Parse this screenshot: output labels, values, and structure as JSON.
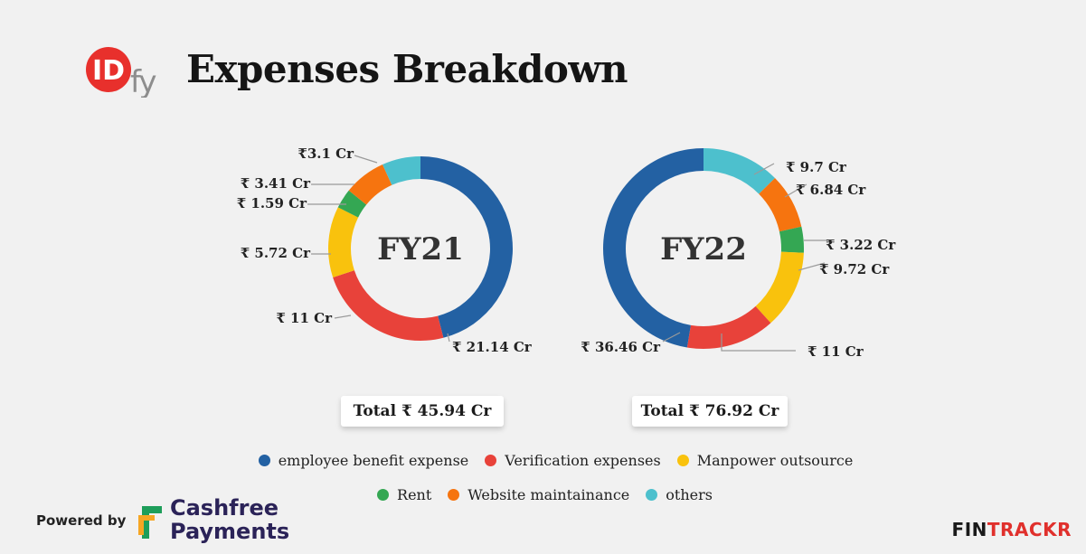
{
  "title": "Expenses Breakdown",
  "brand_logo_text": "IDfy",
  "colors": {
    "employee": "#2361a3",
    "verification": "#e8423a",
    "manpower": "#f9c20d",
    "rent": "#34a753",
    "website": "#f6740f",
    "others": "#4dc0cd"
  },
  "chart_data": [
    {
      "type": "pie",
      "donut": true,
      "center_label": "FY21",
      "total_label": "Total ₹ 45.94 Cr",
      "slices": [
        {
          "category": "employee benefit expense",
          "value": 21.14,
          "label": "₹ 21.14 Cr",
          "color": "#2361a3"
        },
        {
          "category": "Verification expenses",
          "value": 11,
          "label": "₹ 11 Cr",
          "color": "#e8423a"
        },
        {
          "category": "Manpower outsource",
          "value": 5.72,
          "label": "₹ 5.72 Cr",
          "color": "#f9c20d"
        },
        {
          "category": "Rent",
          "value": 1.59,
          "label": "₹ 1.59 Cr",
          "color": "#34a753"
        },
        {
          "category": "Website maintainance",
          "value": 3.41,
          "label": "₹ 3.41 Cr",
          "color": "#f6740f"
        },
        {
          "category": "others",
          "value": 3.1,
          "label": "₹3.1 Cr",
          "color": "#4dc0cd"
        }
      ]
    },
    {
      "type": "pie",
      "donut": true,
      "center_label": "FY22",
      "total_label": "Total ₹ 76.92 Cr",
      "slices": [
        {
          "category": "others",
          "value": 9.7,
          "label": "₹ 9.7 Cr",
          "color": "#4dc0cd"
        },
        {
          "category": "Website maintainance",
          "value": 6.84,
          "label": "₹ 6.84 Cr",
          "color": "#f6740f"
        },
        {
          "category": "Rent",
          "value": 3.22,
          "label": "₹ 3.22 Cr",
          "color": "#34a753"
        },
        {
          "category": "Manpower outsource",
          "value": 9.72,
          "label": "₹ 9.72 Cr",
          "color": "#f9c20d"
        },
        {
          "category": "Verification expenses",
          "value": 11,
          "label": "₹ 11 Cr",
          "color": "#e8423a"
        },
        {
          "category": "employee benefit expense",
          "value": 36.46,
          "label": "₹ 36.46 Cr",
          "color": "#2361a3"
        }
      ]
    }
  ],
  "legend": {
    "row1": [
      {
        "label": "employee benefit expense",
        "color": "#2361a3"
      },
      {
        "label": "Verification expenses",
        "color": "#e8423a"
      },
      {
        "label": "Manpower outsource",
        "color": "#f9c20d"
      }
    ],
    "row2": [
      {
        "label": "Rent",
        "color": "#34a753"
      },
      {
        "label": "Website maintainance",
        "color": "#f6740f"
      },
      {
        "label": "others",
        "color": "#4dc0cd"
      }
    ]
  },
  "footer": {
    "powered_by": "Powered by",
    "cashfree_line1": "Cashfree",
    "cashfree_line2": "Payments",
    "fintrackr_main": "FIN",
    "fintrackr_accent": "TRACKR"
  }
}
